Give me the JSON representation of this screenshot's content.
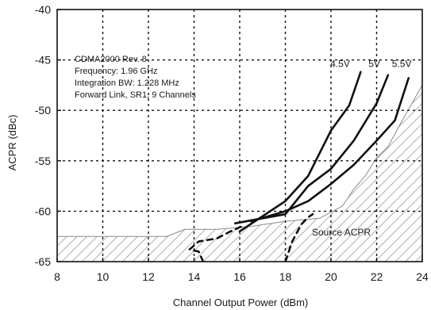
{
  "chart_data": {
    "type": "line",
    "title": "",
    "xlabel": "Channel Output Power (dBm)",
    "ylabel": "ACPR  (dBc)",
    "xlim": [
      8,
      24
    ],
    "ylim": [
      -65,
      -40
    ],
    "x_ticks": [
      8,
      10,
      12,
      14,
      16,
      18,
      20,
      22,
      24
    ],
    "y_ticks": [
      -40,
      -45,
      -50,
      -55,
      -60,
      -65
    ],
    "x_tick_labels": [
      "8",
      "10",
      "12",
      "14",
      "16",
      "18",
      "20",
      "22",
      "24"
    ],
    "y_tick_labels": [
      "-40",
      "-45",
      "-50",
      "-55",
      "-60",
      "-65"
    ],
    "grid": "dashed",
    "annotation_lines": [
      "CDMA2000 Rev. 8",
      "Frequency: 1.96 GHz",
      "Integration BW: 1.228 MHz",
      "Forward Link, SR1, 9 Channels"
    ],
    "series": [
      {
        "name": "4.5V",
        "color": "#111111",
        "style": "solid",
        "x": [
          16.0,
          17.0,
          18.0,
          19.0,
          20.0,
          20.8,
          21.3
        ],
        "y": [
          -62.0,
          -60.5,
          -59.0,
          -56.5,
          -52.0,
          -49.5,
          -46.2
        ]
      },
      {
        "name": "5V",
        "color": "#111111",
        "style": "solid",
        "x": [
          15.8,
          17.0,
          18.0,
          19.0,
          20.0,
          21.0,
          22.0,
          22.5
        ],
        "y": [
          -61.2,
          -60.7,
          -60.3,
          -57.5,
          -55.8,
          -53.0,
          -49.3,
          -46.5
        ]
      },
      {
        "name": "5.5V",
        "color": "#111111",
        "style": "solid",
        "x": [
          16.5,
          18.0,
          19.0,
          20.0,
          21.0,
          22.0,
          22.8,
          23.4
        ],
        "y": [
          -61.0,
          -60.0,
          -59.0,
          -57.3,
          -55.4,
          -53.0,
          -51.0,
          -46.8
        ]
      },
      {
        "name": "",
        "color": "#111111",
        "style": "dashed",
        "x": [
          14.4,
          14.2,
          13.8,
          14.2,
          15.0,
          15.6,
          16.2
        ],
        "y": [
          -65.0,
          -64.0,
          -63.8,
          -63.0,
          -62.7,
          -62.0,
          -61.4
        ]
      },
      {
        "name": "",
        "color": "#111111",
        "style": "dashed",
        "x": [
          18.0,
          18.3,
          18.7,
          19.0,
          19.2
        ],
        "y": [
          -65.0,
          -63.0,
          -61.3,
          -60.6,
          -60.3
        ]
      }
    ],
    "source_acpr": {
      "label": "Source ACPR",
      "fill": "hatched",
      "x": [
        8,
        12.8,
        13.6,
        15.0,
        16.5,
        18.0,
        19.5,
        20.5,
        21.0,
        21.5,
        22.0,
        22.5,
        23.0,
        24.0
      ],
      "y": [
        -62.5,
        -62.5,
        -61.8,
        -61.8,
        -61.5,
        -61.0,
        -60.7,
        -59.5,
        -57.8,
        -56.5,
        -54.7,
        -53.6,
        -51.5,
        -47.5
      ]
    },
    "series_label_positions": [
      {
        "name": "4.5V",
        "x": 20.4,
        "y": -45.7
      },
      {
        "name": "5V",
        "x": 21.9,
        "y": -45.7
      },
      {
        "name": "5.5V",
        "x": 23.1,
        "y": -45.7
      }
    ]
  }
}
